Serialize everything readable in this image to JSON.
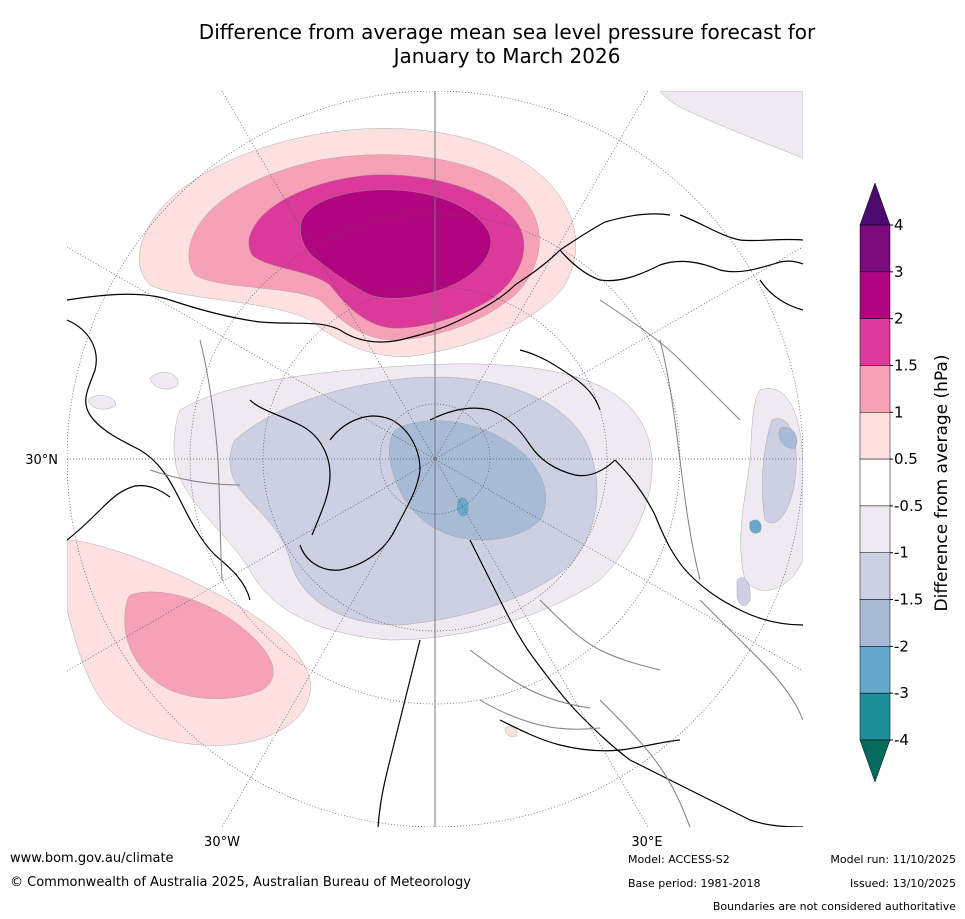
{
  "title_line1": "Difference from average mean sea level pressure forecast for",
  "title_line2": "January to March 2026",
  "map_labels": {
    "lat_30n": "30°N",
    "lon_30w": "30°W",
    "lon_30e": "30°E"
  },
  "colorbar": {
    "label": "Difference from average (hPa)",
    "ticks": [
      "4",
      "3",
      "2",
      "1.5",
      "1",
      "0.5",
      "-0.5",
      "-1",
      "-1.5",
      "-2",
      "-3",
      "-4"
    ],
    "colors": {
      "gt4": "#4a0a6e",
      "c3_4": "#7b0a7d",
      "c2_3": "#b0057e",
      "c15_2": "#db3a9b",
      "c1_15": "#f7a1b7",
      "c05_1": "#fde0e0",
      "neutral": "#ffffff",
      "m05_1": "#efe9f1",
      "m1_15": "#cdd0e2",
      "m15_2": "#a8bbd6",
      "m2_3": "#66a8cc",
      "m3_4": "#1e8f9a",
      "lt_m4": "#056b5e"
    }
  },
  "footer": {
    "website": "www.bom.gov.au/climate",
    "copyright": "© Commonwealth of Australia 2025, Australian Bureau of Meteorology",
    "model": "Model: ACCESS-S2",
    "base_period": "Base period: 1981-2018",
    "model_run": "Model run: 11/10/2025",
    "issued": "Issued: 13/10/2025",
    "disclaimer": "Boundaries are not considered authoritative"
  }
}
